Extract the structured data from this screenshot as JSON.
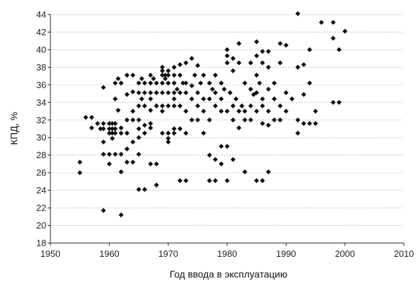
{
  "chart_data": {
    "type": "scatter",
    "xlabel": "Год ввода в эксплуатацию",
    "ylabel": "КПД, %",
    "xlim": [
      1950,
      2010
    ],
    "ylim": [
      18,
      44
    ],
    "xticks": [
      1950,
      1960,
      1970,
      1980,
      1990,
      2000,
      2010
    ],
    "yticks": [
      18,
      20,
      22,
      24,
      26,
      28,
      30,
      32,
      34,
      36,
      38,
      40,
      42,
      44
    ],
    "grid": "horizontal dotted",
    "marker": "diamond",
    "marker_color": "#111111",
    "points": [
      [
        1955.0,
        27.2
      ],
      [
        1955.0,
        26.0
      ],
      [
        1956.0,
        32.3
      ],
      [
        1957.0,
        32.3
      ],
      [
        1957.0,
        31.1
      ],
      [
        1958.0,
        31.6
      ],
      [
        1958.5,
        31.0
      ],
      [
        1959.0,
        35.7
      ],
      [
        1959.0,
        31.6
      ],
      [
        1959.0,
        31.0
      ],
      [
        1959.0,
        29.5
      ],
      [
        1959.0,
        28.1
      ],
      [
        1959.0,
        21.7
      ],
      [
        1960.0,
        31.6
      ],
      [
        1960.0,
        31.0
      ],
      [
        1960.0,
        30.5
      ],
      [
        1960.0,
        28.1
      ],
      [
        1960.0,
        27.0
      ],
      [
        1960.5,
        31.6
      ],
      [
        1960.5,
        31.0
      ],
      [
        1960.5,
        30.5
      ],
      [
        1960.5,
        29.9
      ],
      [
        1961.0,
        36.2
      ],
      [
        1961.0,
        34.4
      ],
      [
        1961.0,
        31.6
      ],
      [
        1961.0,
        31.0
      ],
      [
        1961.0,
        30.5
      ],
      [
        1961.0,
        28.1
      ],
      [
        1961.5,
        36.7
      ],
      [
        1961.5,
        33.1
      ],
      [
        1962.0,
        36.2
      ],
      [
        1962.0,
        31.1
      ],
      [
        1962.0,
        30.5
      ],
      [
        1962.0,
        28.1
      ],
      [
        1962.0,
        26.1
      ],
      [
        1962.0,
        21.2
      ],
      [
        1963.0,
        37.1
      ],
      [
        1963.0,
        34.9
      ],
      [
        1963.0,
        32.0
      ],
      [
        1963.0,
        30.5
      ],
      [
        1963.0,
        28.7
      ],
      [
        1963.0,
        27.2
      ],
      [
        1964.0,
        37.1
      ],
      [
        1964.0,
        35.2
      ],
      [
        1964.0,
        33.0
      ],
      [
        1964.0,
        32.0
      ],
      [
        1964.0,
        29.5
      ],
      [
        1964.0,
        27.2
      ],
      [
        1965.0,
        36.2
      ],
      [
        1965.0,
        35.1
      ],
      [
        1965.0,
        33.6
      ],
      [
        1965.0,
        32.0
      ],
      [
        1965.0,
        31.0
      ],
      [
        1965.0,
        30.0
      ],
      [
        1965.0,
        28.1
      ],
      [
        1965.0,
        24.1
      ],
      [
        1965.5,
        36.7
      ],
      [
        1965.5,
        34.4
      ],
      [
        1966.0,
        36.2
      ],
      [
        1966.0,
        35.1
      ],
      [
        1966.0,
        33.6
      ],
      [
        1966.0,
        31.4
      ],
      [
        1966.0,
        30.5
      ],
      [
        1966.0,
        24.1
      ],
      [
        1967.0,
        37.1
      ],
      [
        1967.0,
        36.2
      ],
      [
        1967.0,
        35.1
      ],
      [
        1967.0,
        34.4
      ],
      [
        1967.0,
        33.1
      ],
      [
        1967.0,
        31.6
      ],
      [
        1967.0,
        31.1
      ],
      [
        1967.0,
        27.0
      ],
      [
        1967.5,
        36.7
      ],
      [
        1968.0,
        36.2
      ],
      [
        1968.0,
        35.1
      ],
      [
        1968.0,
        33.6
      ],
      [
        1968.0,
        27.0
      ],
      [
        1968.0,
        24.6
      ],
      [
        1969.0,
        38.0
      ],
      [
        1969.0,
        37.6
      ],
      [
        1969.0,
        37.1
      ],
      [
        1969.0,
        36.2
      ],
      [
        1969.0,
        35.1
      ],
      [
        1969.0,
        33.6
      ],
      [
        1969.0,
        33.0
      ],
      [
        1969.0,
        30.5
      ],
      [
        1969.5,
        37.1
      ],
      [
        1969.5,
        36.7
      ],
      [
        1970.0,
        37.6
      ],
      [
        1970.0,
        37.1
      ],
      [
        1970.0,
        36.2
      ],
      [
        1970.0,
        35.1
      ],
      [
        1970.0,
        33.6
      ],
      [
        1970.0,
        30.5
      ],
      [
        1970.0,
        29.9
      ],
      [
        1970.0,
        29.5
      ],
      [
        1971.0,
        38.0
      ],
      [
        1971.0,
        37.1
      ],
      [
        1971.0,
        36.2
      ],
      [
        1971.0,
        35.1
      ],
      [
        1971.0,
        34.4
      ],
      [
        1971.0,
        33.6
      ],
      [
        1971.0,
        31.0
      ],
      [
        1971.0,
        30.5
      ],
      [
        1971.5,
        35.5
      ],
      [
        1972.0,
        38.3
      ],
      [
        1972.0,
        37.1
      ],
      [
        1972.0,
        35.1
      ],
      [
        1972.0,
        33.6
      ],
      [
        1972.0,
        31.0
      ],
      [
        1972.0,
        25.1
      ],
      [
        1972.5,
        36.2
      ],
      [
        1973.0,
        38.5
      ],
      [
        1973.0,
        36.2
      ],
      [
        1973.0,
        35.1
      ],
      [
        1973.0,
        33.0
      ],
      [
        1973.0,
        30.5
      ],
      [
        1973.0,
        25.1
      ],
      [
        1974.0,
        39.0
      ],
      [
        1974.0,
        35.9
      ],
      [
        1974.0,
        34.4
      ],
      [
        1974.0,
        32.0
      ],
      [
        1974.5,
        37.1
      ],
      [
        1975.0,
        38.2
      ],
      [
        1975.0,
        35.1
      ],
      [
        1975.0,
        33.6
      ],
      [
        1975.0,
        32.0
      ],
      [
        1975.5,
        36.2
      ],
      [
        1976.0,
        37.1
      ],
      [
        1976.0,
        34.4
      ],
      [
        1976.0,
        33.0
      ],
      [
        1976.0,
        30.5
      ],
      [
        1977.0,
        36.2
      ],
      [
        1977.0,
        34.4
      ],
      [
        1977.0,
        32.0
      ],
      [
        1977.0,
        28.0
      ],
      [
        1977.0,
        25.1
      ],
      [
        1977.5,
        35.5
      ],
      [
        1978.0,
        37.1
      ],
      [
        1978.0,
        35.1
      ],
      [
        1978.0,
        33.6
      ],
      [
        1978.0,
        27.5
      ],
      [
        1978.0,
        25.1
      ],
      [
        1979.0,
        36.2
      ],
      [
        1979.0,
        34.4
      ],
      [
        1979.0,
        33.0
      ],
      [
        1979.0,
        29.0
      ],
      [
        1979.0,
        27.0
      ],
      [
        1979.5,
        35.5
      ],
      [
        1980.0,
        40.0
      ],
      [
        1980.0,
        39.3
      ],
      [
        1980.0,
        38.5
      ],
      [
        1980.0,
        33.0
      ],
      [
        1980.0,
        29.0
      ],
      [
        1980.0,
        25.1
      ],
      [
        1980.5,
        35.1
      ],
      [
        1981.0,
        39.0
      ],
      [
        1981.0,
        37.6
      ],
      [
        1981.0,
        33.6
      ],
      [
        1981.0,
        32.0
      ],
      [
        1981.0,
        27.5
      ],
      [
        1981.5,
        34.4
      ],
      [
        1982.0,
        40.7
      ],
      [
        1982.0,
        38.5
      ],
      [
        1982.0,
        33.0
      ],
      [
        1982.0,
        31.1
      ],
      [
        1982.5,
        33.6
      ],
      [
        1983.0,
        36.2
      ],
      [
        1983.0,
        33.0
      ],
      [
        1983.0,
        32.0
      ],
      [
        1983.0,
        26.1
      ],
      [
        1984.0,
        38.5
      ],
      [
        1984.0,
        35.5
      ],
      [
        1984.0,
        33.6
      ],
      [
        1984.0,
        32.0
      ],
      [
        1984.5,
        34.9
      ],
      [
        1985.0,
        40.9
      ],
      [
        1985.0,
        39.3
      ],
      [
        1985.0,
        37.1
      ],
      [
        1985.0,
        35.1
      ],
      [
        1985.0,
        33.0
      ],
      [
        1985.0,
        25.1
      ],
      [
        1985.5,
        36.2
      ],
      [
        1986.0,
        39.8
      ],
      [
        1986.0,
        38.5
      ],
      [
        1986.0,
        34.4
      ],
      [
        1986.0,
        33.6
      ],
      [
        1986.0,
        31.6
      ],
      [
        1986.0,
        25.1
      ],
      [
        1987.0,
        39.8
      ],
      [
        1987.0,
        38.0
      ],
      [
        1987.0,
        35.5
      ],
      [
        1987.0,
        33.0
      ],
      [
        1987.0,
        31.4
      ],
      [
        1987.0,
        26.1
      ],
      [
        1988.0,
        36.2
      ],
      [
        1988.0,
        34.4
      ],
      [
        1988.0,
        32.0
      ],
      [
        1989.0,
        40.7
      ],
      [
        1989.0,
        38.5
      ],
      [
        1989.0,
        33.6
      ],
      [
        1989.0,
        32.0
      ],
      [
        1990.0,
        40.5
      ],
      [
        1990.0,
        35.1
      ],
      [
        1990.0,
        33.0
      ],
      [
        1991.0,
        34.4
      ],
      [
        1992.0,
        44.1
      ],
      [
        1992.0,
        38.0
      ],
      [
        1992.0,
        32.0
      ],
      [
        1992.0,
        30.5
      ],
      [
        1993.0,
        38.3
      ],
      [
        1993.0,
        34.9
      ],
      [
        1993.0,
        31.6
      ],
      [
        1994.0,
        40.0
      ],
      [
        1994.0,
        36.2
      ],
      [
        1994.0,
        31.6
      ],
      [
        1995.0,
        33.0
      ],
      [
        1995.0,
        31.6
      ],
      [
        1996.0,
        43.1
      ],
      [
        1998.0,
        43.1
      ],
      [
        1998.0,
        41.3
      ],
      [
        1998.0,
        34.0
      ],
      [
        1999.0,
        40.0
      ],
      [
        1999.0,
        34.0
      ],
      [
        2000.0,
        42.1
      ]
    ]
  }
}
